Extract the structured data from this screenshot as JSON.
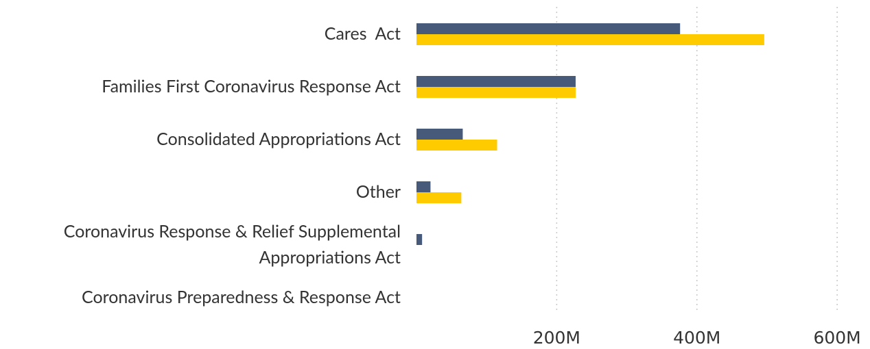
{
  "chart_data": {
    "type": "bar",
    "orientation": "horizontal",
    "categories": [
      "Cares  Act",
      "Families First Coronavirus Response Act",
      "Consolidated Appropriations Act",
      "Other",
      "Coronavirus Response & Relief Supplemental\nAppropriations Act",
      "Coronavirus Preparedness & Response Act"
    ],
    "series": [
      {
        "color": "#475a7a",
        "values": [
          376,
          227,
          66,
          20,
          8,
          0
        ]
      },
      {
        "color": "#fecb00",
        "values": [
          496,
          227,
          115,
          64,
          0,
          0
        ]
      }
    ],
    "xlim": [
      0,
      640
    ],
    "xticks": [
      {
        "value": 200,
        "label": "200M"
      },
      {
        "value": 400,
        "label": "400M"
      },
      {
        "value": 600,
        "label": "600M"
      }
    ],
    "grid": true
  }
}
